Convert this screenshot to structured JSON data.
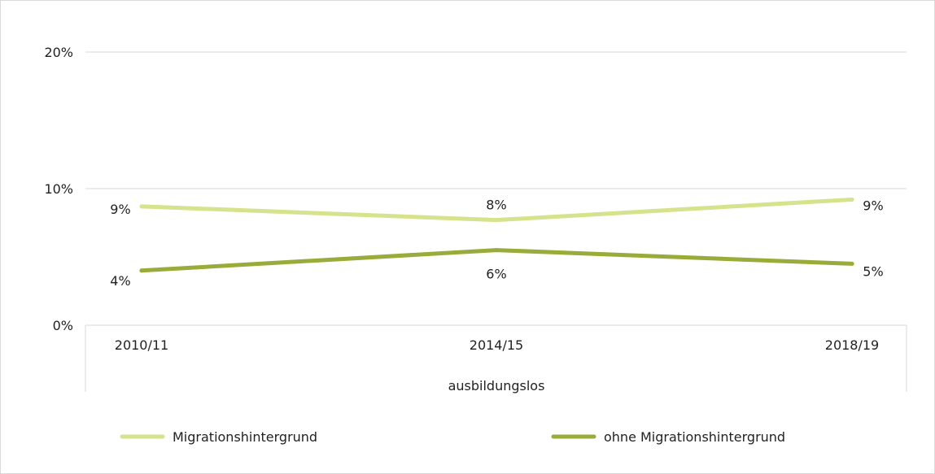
{
  "chart_data": {
    "type": "line",
    "categories": [
      "2010/11",
      "2014/15",
      "2018/19"
    ],
    "group_label": "ausbildungslos",
    "ylim": [
      0,
      20
    ],
    "y_ticks": [
      0,
      10,
      20
    ],
    "y_tick_labels": [
      "0%",
      "10%",
      "20%"
    ],
    "grid": true,
    "legend_position": "bottom",
    "series": [
      {
        "name": "Migrationshintergrund",
        "values": [
          8.7,
          7.7,
          9.2
        ],
        "labels": [
          "9%",
          "8%",
          "9%"
        ],
        "color": "#d6e28c"
      },
      {
        "name": "ohne Migrationshintergrund",
        "values": [
          4.0,
          5.5,
          4.5
        ],
        "labels": [
          "4%",
          "6%",
          "5%"
        ],
        "color": "#9aab3a"
      }
    ]
  }
}
